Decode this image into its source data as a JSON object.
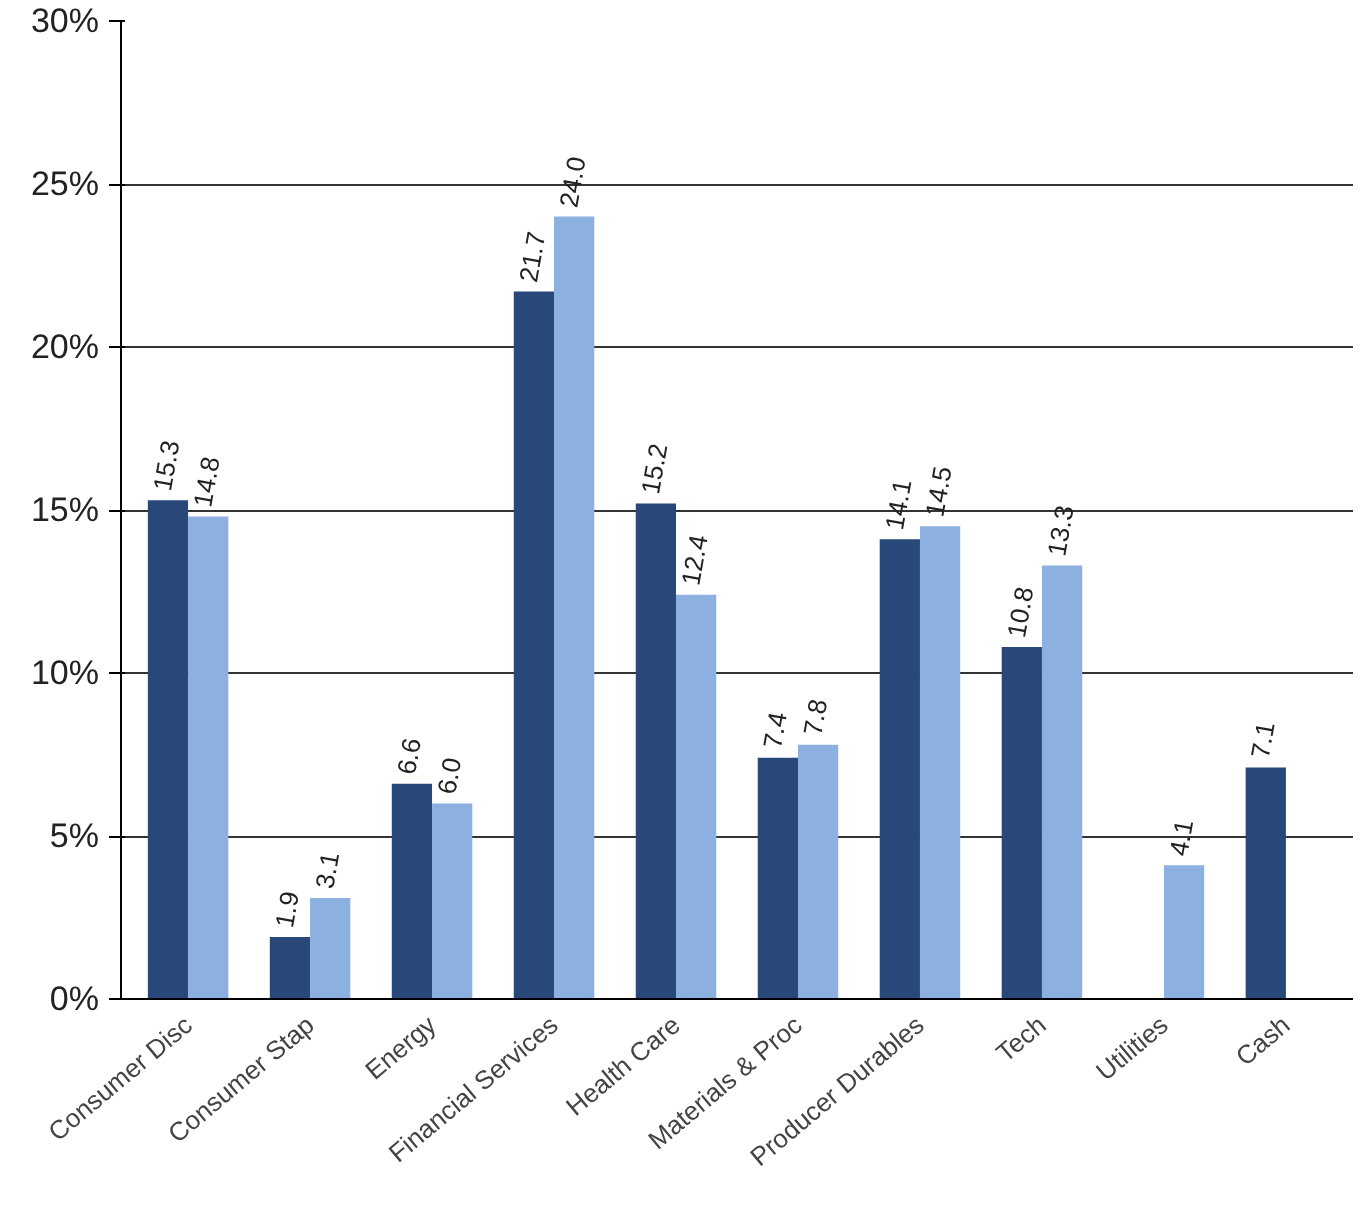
{
  "chart_data": {
    "type": "bar",
    "categories": [
      "Consumer Disc",
      "Consumer Stap",
      "Energy",
      "Financial Services",
      "Health Care",
      "Materials & Proc",
      "Producer Durables",
      "Tech",
      "Utilities",
      "Cash"
    ],
    "series": [
      {
        "color": "#28487a",
        "values": [
          15.3,
          1.9,
          6.6,
          21.7,
          15.2,
          7.4,
          14.1,
          10.8,
          null,
          7.1
        ],
        "value_labels": [
          "15.3",
          "1.9",
          "6.6",
          "21.7",
          "15.2",
          "7.4",
          "14.1",
          "10.8",
          null,
          "7.1"
        ]
      },
      {
        "color": "#8cb0e0",
        "values": [
          14.8,
          3.1,
          6.0,
          24.0,
          12.4,
          7.8,
          14.5,
          13.3,
          4.1,
          null
        ],
        "value_labels": [
          "14.8",
          "3.1",
          "6.0",
          "24.0",
          "12.4",
          "7.8",
          "14.5",
          "13.3",
          "4.1",
          null
        ]
      }
    ],
    "ylim": [
      0,
      30
    ],
    "yticks": [
      {
        "value": 0,
        "label": "0%"
      },
      {
        "value": 5,
        "label": "5%"
      },
      {
        "value": 10,
        "label": "10%"
      },
      {
        "value": 15,
        "label": "15%"
      },
      {
        "value": 20,
        "label": "20%"
      },
      {
        "value": 25,
        "label": "25%"
      },
      {
        "value": 30,
        "label": "30%"
      }
    ],
    "grid": "y"
  }
}
